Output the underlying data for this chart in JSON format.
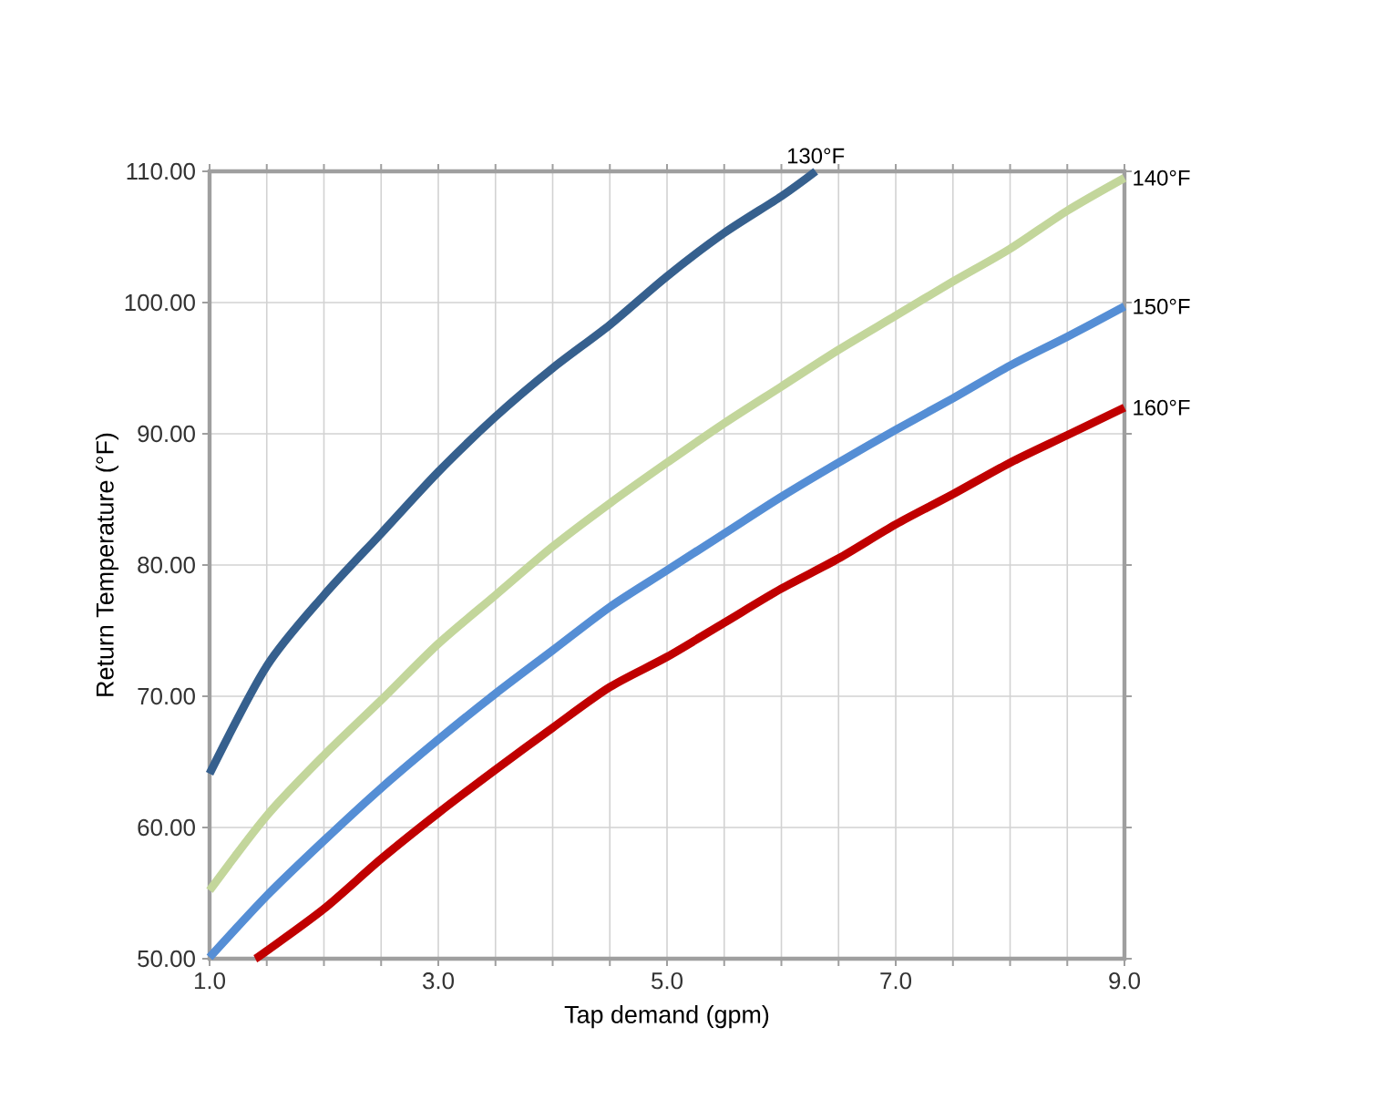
{
  "chart_data": {
    "type": "line",
    "xlabel": "Tap demand (gpm)",
    "ylabel": "Return Temperature (°F)",
    "xlim": [
      1,
      9
    ],
    "ylim": [
      50,
      110
    ],
    "xticks": [
      {
        "value": 1,
        "label": "1.0"
      },
      {
        "value": 1.5,
        "label": null
      },
      {
        "value": 2,
        "label": null
      },
      {
        "value": 2.5,
        "label": null
      },
      {
        "value": 3,
        "label": "3.0"
      },
      {
        "value": 3.5,
        "label": null
      },
      {
        "value": 4,
        "label": null
      },
      {
        "value": 4.5,
        "label": null
      },
      {
        "value": 5,
        "label": "5.0"
      },
      {
        "value": 5.5,
        "label": null
      },
      {
        "value": 6,
        "label": null
      },
      {
        "value": 6.5,
        "label": null
      },
      {
        "value": 7,
        "label": "7.0"
      },
      {
        "value": 7.5,
        "label": null
      },
      {
        "value": 8,
        "label": null
      },
      {
        "value": 8.5,
        "label": null
      },
      {
        "value": 9,
        "label": "9.0"
      }
    ],
    "yticks": [
      {
        "value": 50,
        "label": "50.00"
      },
      {
        "value": 60,
        "label": "60.00"
      },
      {
        "value": 70,
        "label": "70.00"
      },
      {
        "value": 80,
        "label": "80.00"
      },
      {
        "value": 90,
        "label": "90.00"
      },
      {
        "value": 100,
        "label": "100.00"
      },
      {
        "value": 110,
        "label": "110.00"
      }
    ],
    "grid": true,
    "marker": "none",
    "line_style": "solid",
    "series": [
      {
        "name": "130°F",
        "color": "#36608e",
        "x": [
          1,
          1.5,
          2,
          2.5,
          3,
          3.5,
          4,
          4.5,
          5,
          5.5,
          6,
          6.3
        ],
        "values": [
          64.1,
          72.3,
          77.7,
          82.4,
          87.1,
          91.3,
          95.0,
          98.3,
          102.0,
          105.3,
          108.1,
          110
        ]
      },
      {
        "name": "140°F",
        "color": "#c3d69b",
        "x": [
          1,
          1.5,
          2,
          2.5,
          3,
          3.5,
          4,
          4.5,
          5,
          5.5,
          6,
          6.5,
          7,
          7.5,
          8,
          8.5,
          9
        ],
        "values": [
          55.2,
          60.9,
          65.5,
          69.7,
          74.0,
          77.7,
          81.4,
          84.7,
          87.8,
          90.8,
          93.6,
          96.4,
          99.0,
          101.6,
          104.1,
          107.0,
          109.5
        ]
      },
      {
        "name": "150°F",
        "color": "#558ed5",
        "x": [
          1,
          1.5,
          2,
          2.5,
          3,
          3.5,
          4,
          4.5,
          5,
          5.5,
          6,
          6.5,
          7,
          7.5,
          8,
          8.5,
          9
        ],
        "values": [
          50.1,
          54.8,
          59.0,
          63.0,
          66.7,
          70.2,
          73.5,
          76.8,
          79.6,
          82.4,
          85.2,
          87.8,
          90.3,
          92.7,
          95.2,
          97.4,
          99.7
        ]
      },
      {
        "name": "160°F",
        "color": "#c00000",
        "x": [
          1.4,
          1.5,
          2,
          2.5,
          3,
          3.5,
          4,
          4.5,
          5,
          5.5,
          6,
          6.5,
          7,
          7.5,
          8,
          8.5,
          9
        ],
        "values": [
          50,
          50.6,
          53.8,
          57.6,
          61.1,
          64.4,
          67.6,
          70.7,
          73.0,
          75.6,
          78.2,
          80.5,
          83.1,
          85.4,
          87.8,
          89.9,
          92.0
        ]
      }
    ]
  }
}
